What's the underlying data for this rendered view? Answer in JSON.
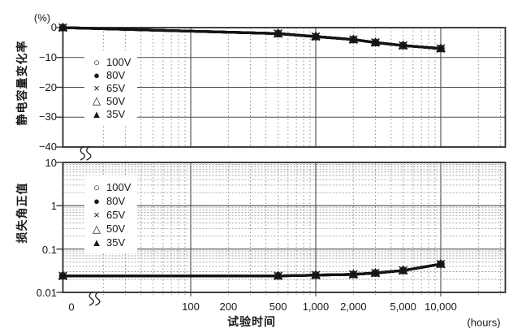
{
  "colors": {
    "background": "#ffffff",
    "line": "#141414",
    "frame": "#2b2b2b",
    "grid_solid": "#4a4a4a",
    "grid_dotted": "#8f8f8f",
    "text": "#1a1a1a"
  },
  "axes": {
    "x": {
      "title": "试验时间",
      "unit_label": "(hours)",
      "zero_label": "0",
      "scale": "log-with-zero-break",
      "tick_labels": [
        "100",
        "200",
        "500",
        "1,000",
        "2,000",
        "5,000",
        "10,000"
      ],
      "tick_values": [
        100,
        200,
        500,
        1000,
        2000,
        5000,
        10000
      ],
      "solid_gridline_values": [
        100,
        1000,
        10000
      ],
      "visible_range_after_break": [
        20,
        33000
      ],
      "has_zero_break": true
    }
  },
  "legend": {
    "items": [
      {
        "marker": "open-circle-icon",
        "glyph": "○",
        "label": "100V"
      },
      {
        "marker": "filled-circle-icon",
        "glyph": "●",
        "label": "80V"
      },
      {
        "marker": "x-cross-icon",
        "glyph": "×",
        "label": "65V"
      },
      {
        "marker": "open-triangle-icon",
        "glyph": "△",
        "label": "50V"
      },
      {
        "marker": "filled-triangle-icon",
        "glyph": "▲",
        "label": "35V"
      }
    ]
  },
  "chart_data": [
    {
      "id": "capacitance-change-rate",
      "type": "line",
      "ylabel": "静电容量变化率",
      "y_unit": "(%)",
      "xlabel": "试验时间 (hours)",
      "y_scale": "linear",
      "ylim": [
        -40,
        0
      ],
      "ytick_labels": [
        "0",
        "−10",
        "−20",
        "−30",
        "−40"
      ],
      "ytick_values": [
        0,
        -10,
        -20,
        -30,
        -40
      ],
      "x": [
        0,
        500,
        1000,
        2000,
        3000,
        5000,
        10000
      ],
      "series": [
        {
          "name": "100V",
          "values": [
            0,
            -2,
            -3,
            -4,
            -5,
            -6,
            -7
          ]
        },
        {
          "name": "80V",
          "values": [
            0,
            -2,
            -3,
            -4,
            -5,
            -6,
            -7
          ]
        },
        {
          "name": "65V",
          "values": [
            0,
            -2,
            -3,
            -4,
            -5,
            -6,
            -7
          ]
        },
        {
          "name": "50V",
          "values": [
            0,
            -2,
            -3,
            -4,
            -5,
            -6,
            -7
          ]
        },
        {
          "name": "35V",
          "values": [
            0,
            -2,
            -3,
            -4,
            -5,
            -6,
            -7
          ]
        }
      ],
      "layout_note": "all five voltage series coincide (curves overlap)",
      "grid": "solid horizontal every 10%, dotted vertical log minors",
      "legend_position": "upper-left-inside"
    },
    {
      "id": "loss-angle-value",
      "type": "line",
      "ylabel": "损失角正值",
      "y_unit": "",
      "xlabel": "试验时间 (hours)",
      "y_scale": "log",
      "ylim": [
        0.01,
        10
      ],
      "ytick_labels": [
        "10",
        "1",
        "0.1",
        "0.01"
      ],
      "ytick_values": [
        10,
        1,
        0.1,
        0.01
      ],
      "x": [
        0,
        500,
        1000,
        2000,
        3000,
        5000,
        10000
      ],
      "series": [
        {
          "name": "100V",
          "values": [
            0.024,
            0.024,
            0.025,
            0.026,
            0.028,
            0.032,
            0.045
          ]
        },
        {
          "name": "80V",
          "values": [
            0.024,
            0.024,
            0.025,
            0.026,
            0.028,
            0.032,
            0.045
          ]
        },
        {
          "name": "65V",
          "values": [
            0.024,
            0.024,
            0.025,
            0.026,
            0.028,
            0.032,
            0.045
          ]
        },
        {
          "name": "50V",
          "values": [
            0.024,
            0.024,
            0.025,
            0.026,
            0.028,
            0.032,
            0.045
          ]
        },
        {
          "name": "35V",
          "values": [
            0.024,
            0.024,
            0.025,
            0.026,
            0.028,
            0.032,
            0.045
          ]
        }
      ],
      "layout_note": "all five voltage series coincide (curves overlap)",
      "grid": "solid lines at decades, dotted log minors both directions",
      "legend_position": "upper-left-inside"
    }
  ]
}
